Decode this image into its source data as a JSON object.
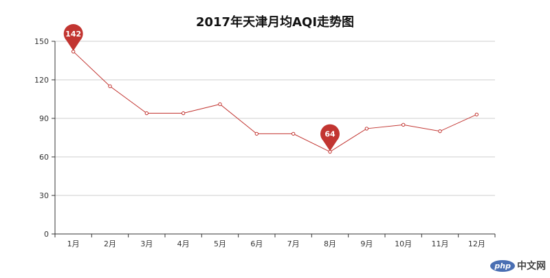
{
  "chart_data": {
    "type": "line",
    "title": "2017年天津月均AQI走势图",
    "categories": [
      "1月",
      "2月",
      "3月",
      "4月",
      "5月",
      "6月",
      "7月",
      "8月",
      "9月",
      "10月",
      "11月",
      "12月"
    ],
    "values": [
      142,
      115,
      94,
      94,
      101,
      78,
      78,
      64,
      82,
      85,
      80,
      93
    ],
    "ylim": [
      0,
      150
    ],
    "yticks": [
      0,
      30,
      60,
      90,
      120,
      150
    ],
    "grid": true,
    "line_color": "#c23531",
    "markers": [
      {
        "type": "max",
        "value": 142,
        "label": "142",
        "index": 0
      },
      {
        "type": "min",
        "value": 64,
        "label": "64",
        "index": 7
      }
    ]
  },
  "watermark": {
    "logo": "php",
    "text": "中文网"
  }
}
